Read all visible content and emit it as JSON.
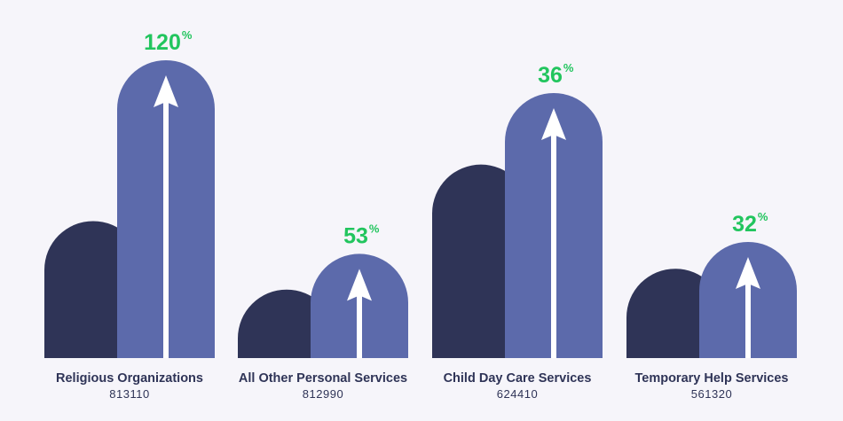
{
  "chart_data": {
    "type": "bar",
    "title": "",
    "categories": [
      "Religious Organizations",
      "All Other Personal Services",
      "Child Day Care Services",
      "Temporary Help Services"
    ],
    "codes": [
      "813110",
      "812990",
      "624410",
      "561320"
    ],
    "series": [
      {
        "values": [
          46,
          23,
          65,
          30
        ]
      },
      {
        "values": [
          100,
          35,
          89,
          39
        ]
      }
    ],
    "growth_labels": [
      "120",
      "53",
      "36",
      "32"
    ],
    "percent_sign": "%",
    "ylim": [
      0,
      100
    ],
    "grid": false,
    "legend": "none",
    "colors": {
      "before": "#2f3457",
      "after": "#5c6aab",
      "growth": "#22c55e",
      "arrow": "#ffffff",
      "background": "#f6f5fa"
    }
  }
}
